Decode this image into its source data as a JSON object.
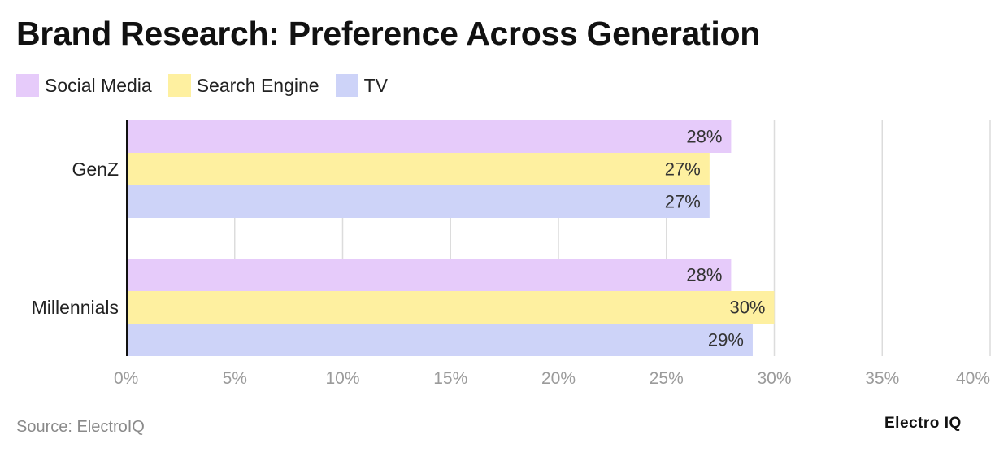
{
  "title": "Brand Research: Preference Across Generation",
  "source": "Source: ElectroIQ",
  "brand": "Electro IQ",
  "legend": [
    {
      "label": "Social Media",
      "color": "#e6cbfa"
    },
    {
      "label": "Search Engine",
      "color": "#fef0a0"
    },
    {
      "label": "TV",
      "color": "#cdd3f8"
    }
  ],
  "chart_data": {
    "type": "bar",
    "orientation": "horizontal",
    "categories": [
      "GenZ",
      "Millennials"
    ],
    "series": [
      {
        "name": "Social Media",
        "color": "#e6cbfa",
        "values": [
          28,
          28
        ]
      },
      {
        "name": "Search Engine",
        "color": "#fef0a0",
        "values": [
          27,
          30
        ]
      },
      {
        "name": "TV",
        "color": "#cdd3f8",
        "values": [
          27,
          29
        ]
      }
    ],
    "value_labels": [
      [
        "28%",
        "28%"
      ],
      [
        "27%",
        "30%"
      ],
      [
        "27%",
        "29%"
      ]
    ],
    "x_ticks": [
      0,
      5,
      10,
      15,
      20,
      25,
      30,
      35,
      40
    ],
    "x_tick_labels": [
      "0%",
      "5%",
      "10%",
      "15%",
      "20%",
      "25%",
      "30%",
      "35%",
      "40%"
    ],
    "xlim": [
      0,
      40
    ],
    "grid": true,
    "legend_position": "top-left"
  }
}
